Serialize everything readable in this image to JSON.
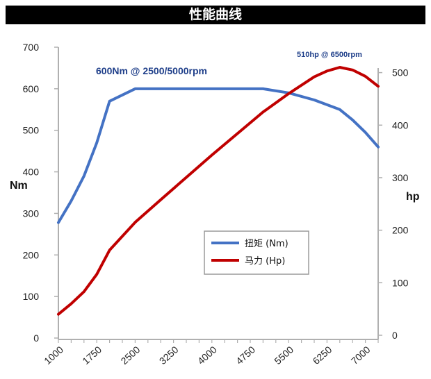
{
  "header": {
    "title": "性能曲线"
  },
  "chart_data": {
    "type": "line",
    "title": "性能曲线",
    "xlabel": "",
    "ylabel_left": "Nm",
    "ylabel_right": "hp",
    "xlim": [
      1000,
      7250
    ],
    "ylim_left": [
      0,
      700
    ],
    "ylim_right": [
      0,
      520
    ],
    "x_ticks": [
      1000,
      1750,
      2500,
      3250,
      4000,
      4750,
      5500,
      6250,
      7000
    ],
    "y_ticks_left": [
      0,
      100,
      200,
      300,
      400,
      500,
      600,
      700
    ],
    "y_ticks_right": [
      0,
      100,
      200,
      300,
      400,
      500
    ],
    "grid": false,
    "legend_position": "center-right",
    "colors": {
      "torque": "#4472c4",
      "power": "#c00000",
      "axis": "#b0b0b0",
      "annotation": "#1f3f8a"
    },
    "series": [
      {
        "name": "扭矩 (Nm)",
        "axis": "left",
        "x": [
          1000,
          1250,
          1500,
          1750,
          2000,
          2500,
          3000,
          4000,
          5000,
          5500,
          6000,
          6500,
          6750,
          7000,
          7250
        ],
        "y": [
          278,
          330,
          390,
          470,
          570,
          600,
          600,
          600,
          600,
          590,
          573,
          550,
          525,
          495,
          460
        ]
      },
      {
        "name": "马力 (Hp)",
        "axis": "right",
        "x": [
          1000,
          1250,
          1500,
          1750,
          2000,
          2500,
          3000,
          4000,
          5000,
          5500,
          6000,
          6250,
          6500,
          6750,
          7000,
          7250
        ],
        "y": [
          40,
          60,
          83,
          116,
          162,
          215,
          258,
          343,
          425,
          460,
          492,
          503,
          510,
          505,
          493,
          474
        ]
      }
    ],
    "annotations": [
      {
        "text": "600Nm @ 2500/5000rpm",
        "at": [
          2620,
          633
        ],
        "axis": "left"
      },
      {
        "text": "510hp @ 6500rpm",
        "at": [
          6520,
          533
        ],
        "axis": "right"
      }
    ]
  }
}
